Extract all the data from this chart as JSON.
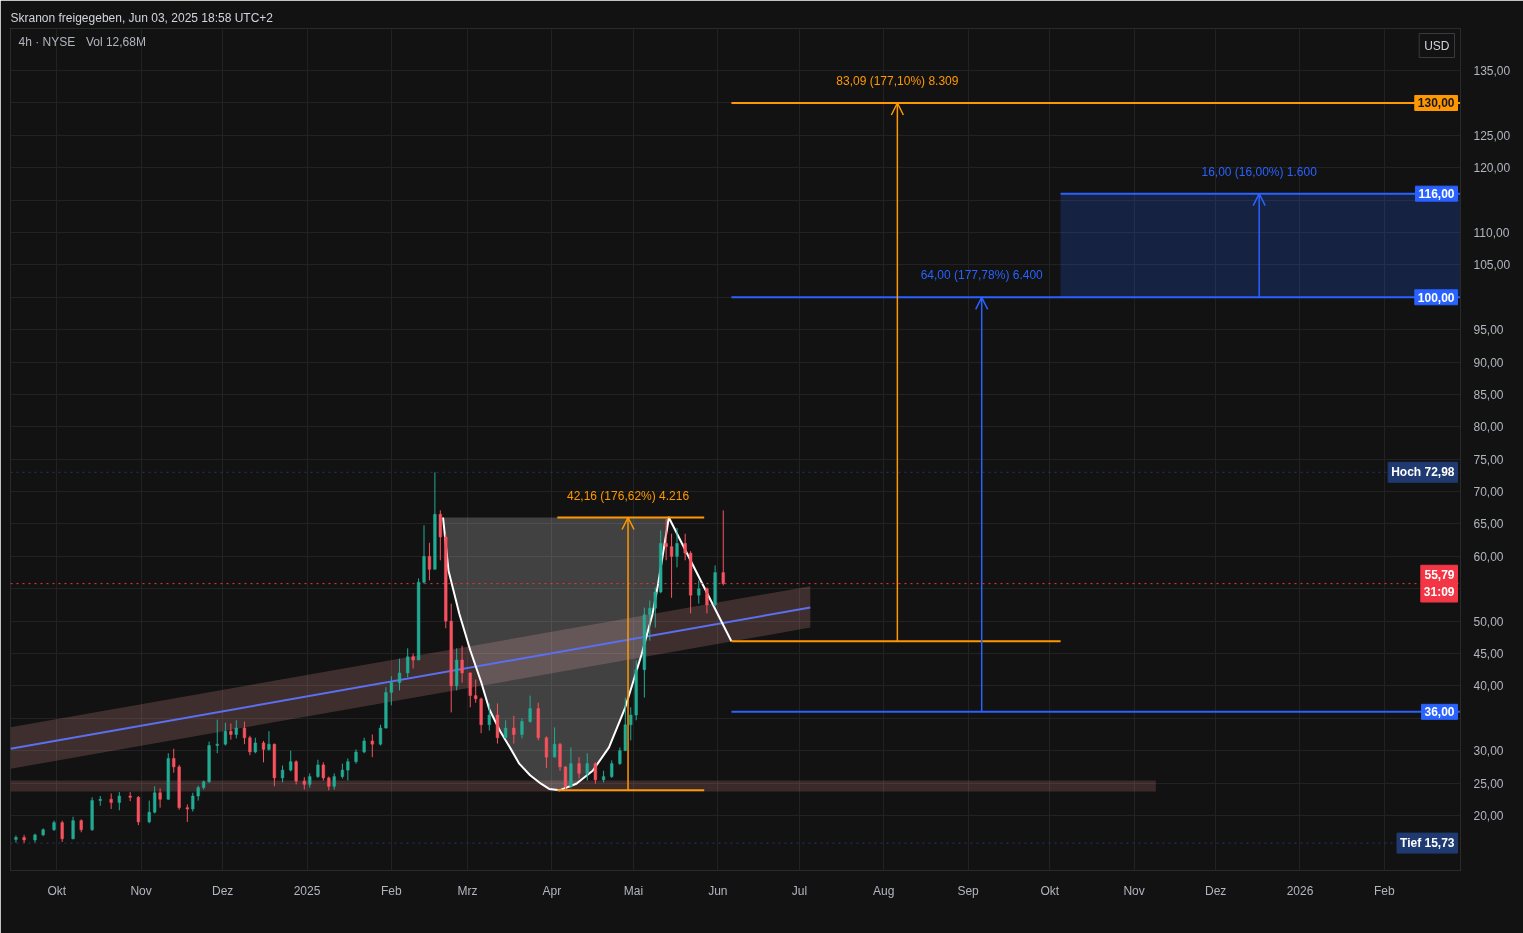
{
  "chart_data": {
    "type": "candlestick",
    "title": "4h · NYSE",
    "subtitle": "Vol 12,68M",
    "ylabel": "USD",
    "annotations": [
      "Skranon freigegeben, Jun 03, 2025 18:58 UTC+2",
      {
        "text": "42,16 (176,62%) 4.216",
        "x": "2025-04-29",
        "y": 66.0
      },
      {
        "text": "83,09 (177,10%) 8.309",
        "x": "2025-08-06",
        "y": 130
      },
      {
        "text": "64,00 (177,78%) 6.400",
        "x": "2025-09-06",
        "y": 100
      },
      {
        "text": "16,00 (16,00%) 1.600",
        "x": "2025-12-17",
        "y": 116
      }
    ],
    "x": [
      "2024-09-16",
      "2024-09-19",
      "2024-09-23",
      "2024-09-26",
      "2024-09-30",
      "2024-10-03",
      "2024-10-07",
      "2024-10-10",
      "2024-10-14",
      "2024-10-17",
      "2024-10-21",
      "2024-10-24",
      "2024-10-28",
      "2024-10-31",
      "2024-11-04",
      "2024-11-06",
      "2024-11-08",
      "2024-11-11",
      "2024-11-13",
      "2024-11-15",
      "2024-11-18",
      "2024-11-20",
      "2024-11-22",
      "2024-11-24",
      "2024-11-26",
      "2024-11-29",
      "2024-12-02",
      "2024-12-04",
      "2024-12-06",
      "2024-12-09",
      "2024-12-11",
      "2024-12-13",
      "2024-12-16",
      "2024-12-18",
      "2024-12-20",
      "2024-12-23",
      "2024-12-26",
      "2024-12-28",
      "2024-12-31",
      "2025-01-02",
      "2025-01-05",
      "2025-01-07",
      "2025-01-09",
      "2025-01-11",
      "2025-01-14",
      "2025-01-16",
      "2025-01-19",
      "2025-01-22",
      "2025-01-25",
      "2025-01-28",
      "2025-01-30",
      "2025-02-01",
      "2025-02-04",
      "2025-02-07",
      "2025-02-09",
      "2025-02-11",
      "2025-02-13",
      "2025-02-15",
      "2025-02-17",
      "2025-02-19",
      "2025-02-21",
      "2025-02-23",
      "2025-02-25",
      "2025-02-27",
      "2025-03-02",
      "2025-03-04",
      "2025-03-06",
      "2025-03-09",
      "2025-03-12",
      "2025-03-15",
      "2025-03-18",
      "2025-03-21",
      "2025-03-24",
      "2025-03-27",
      "2025-03-30",
      "2025-04-02",
      "2025-04-04",
      "2025-04-06",
      "2025-04-08",
      "2025-04-11",
      "2025-04-14",
      "2025-04-17",
      "2025-04-20",
      "2025-04-23",
      "2025-04-26",
      "2025-04-28",
      "2025-04-30",
      "2025-05-02",
      "2025-05-05",
      "2025-05-07",
      "2025-05-09",
      "2025-05-11",
      "2025-05-13",
      "2025-05-15",
      "2025-05-17",
      "2025-05-20",
      "2025-05-22",
      "2025-05-25",
      "2025-05-28",
      "2025-05-31",
      "2025-06-03"
    ],
    "ohlc": [
      [
        16.3,
        16.9,
        15.8,
        16.6
      ],
      [
        16.6,
        17.0,
        15.73,
        16.2
      ],
      [
        16.2,
        17.2,
        15.8,
        17.0
      ],
      [
        17.0,
        18.0,
        16.8,
        17.8
      ],
      [
        17.8,
        19.2,
        17.6,
        18.9
      ],
      [
        18.9,
        19.2,
        15.9,
        16.4
      ],
      [
        16.4,
        19.8,
        16.3,
        19.2
      ],
      [
        19.2,
        19.4,
        17.4,
        17.8
      ],
      [
        17.8,
        22.8,
        17.6,
        22.3
      ],
      [
        22.3,
        23.0,
        21.5,
        22.5
      ],
      [
        22.5,
        23.4,
        21.0,
        22.0
      ],
      [
        22.0,
        23.6,
        20.8,
        23.0
      ],
      [
        23.0,
        23.6,
        22.2,
        22.8
      ],
      [
        22.8,
        23.0,
        18.5,
        19.0
      ],
      [
        19.0,
        22.3,
        18.8,
        20.5
      ],
      [
        20.5,
        24.5,
        20.3,
        23.5
      ],
      [
        23.5,
        24.2,
        21.2,
        22.5
      ],
      [
        22.5,
        29.6,
        22.4,
        28.8
      ],
      [
        28.8,
        30.3,
        26.6,
        27.5
      ],
      [
        27.5,
        27.8,
        20.9,
        21.2
      ],
      [
        21.2,
        21.7,
        19.0,
        21.0
      ],
      [
        21.0,
        23.5,
        20.6,
        23.0
      ],
      [
        23.0,
        24.6,
        22.3,
        24.3
      ],
      [
        24.3,
        25.4,
        24.0,
        25.2
      ],
      [
        25.2,
        31.4,
        25.0,
        30.8
      ],
      [
        30.8,
        34.8,
        29.6,
        31.0
      ],
      [
        31.0,
        34.3,
        30.8,
        33.0
      ],
      [
        33.0,
        34.2,
        31.7,
        32.5
      ],
      [
        32.5,
        34.7,
        31.9,
        33.5
      ],
      [
        33.5,
        34.5,
        31.0,
        32.0
      ],
      [
        32.0,
        32.3,
        29.3,
        29.8
      ],
      [
        29.8,
        32.0,
        29.6,
        31.2
      ],
      [
        31.2,
        31.5,
        28.2,
        30.2
      ],
      [
        30.2,
        33.0,
        30.0,
        31.0
      ],
      [
        31.0,
        31.1,
        24.5,
        25.8
      ],
      [
        25.8,
        27.7,
        25.1,
        27.0
      ],
      [
        27.0,
        30.0,
        26.8,
        28.3
      ],
      [
        28.3,
        28.5,
        24.8,
        25.3
      ],
      [
        25.3,
        25.9,
        24.0,
        24.8
      ],
      [
        24.8,
        26.5,
        24.3,
        26.0
      ],
      [
        26.0,
        28.6,
        25.8,
        27.8
      ],
      [
        27.8,
        28.2,
        25.4,
        25.8
      ],
      [
        25.8,
        26.0,
        23.9,
        24.5
      ],
      [
        24.5,
        26.5,
        24.0,
        26.0
      ],
      [
        26.0,
        28.0,
        25.7,
        27.0
      ],
      [
        27.0,
        28.8,
        25.4,
        28.3
      ],
      [
        28.3,
        30.2,
        28.0,
        29.8
      ],
      [
        29.8,
        32.0,
        29.6,
        31.5
      ],
      [
        31.5,
        32.5,
        29.0,
        31.0
      ],
      [
        31.0,
        34.0,
        30.8,
        33.5
      ],
      [
        33.5,
        39.8,
        33.4,
        39.0
      ],
      [
        39.0,
        41.5,
        37.0,
        40.5
      ],
      [
        40.5,
        44.2,
        39.3,
        42.0
      ],
      [
        42.0,
        45.8,
        41.3,
        44.5
      ],
      [
        44.5,
        45.0,
        42.7,
        44.0
      ],
      [
        44.0,
        56.6,
        44.0,
        56.0
      ],
      [
        56.0,
        64.8,
        55.8,
        60.0
      ],
      [
        60.0,
        62.1,
        56.3,
        58.0
      ],
      [
        58.0,
        72.98,
        58.0,
        66.5
      ],
      [
        66.5,
        67.1,
        59.4,
        63.0
      ],
      [
        63.0,
        63.5,
        48.9,
        50.0
      ],
      [
        50.0,
        52.7,
        35.9,
        40.0
      ],
      [
        40.0,
        45.8,
        39.3,
        44.0
      ],
      [
        44.0,
        46.2,
        40.5,
        42.0
      ],
      [
        42.0,
        42.1,
        36.7,
        38.5
      ],
      [
        38.5,
        41.0,
        37.4,
        38.0
      ],
      [
        38.0,
        38.2,
        32.7,
        34.0
      ],
      [
        34.0,
        37.3,
        33.1,
        35.5
      ],
      [
        35.5,
        37.3,
        31.1,
        32.0
      ],
      [
        32.0,
        34.7,
        31.9,
        33.5
      ],
      [
        33.5,
        35.4,
        31.1,
        32.5
      ],
      [
        32.5,
        35.0,
        31.9,
        34.5
      ],
      [
        34.5,
        38.5,
        34.3,
        36.5
      ],
      [
        36.5,
        37.4,
        31.6,
        32.0
      ],
      [
        32.0,
        32.2,
        27.3,
        29.0
      ],
      [
        29.0,
        33.6,
        29.0,
        31.0
      ],
      [
        31.0,
        31.2,
        26.9,
        27.5
      ],
      [
        27.5,
        27.6,
        23.9,
        24.5
      ],
      [
        24.5,
        30.5,
        24.2,
        28.0
      ],
      [
        28.0,
        29.0,
        25.7,
        26.5
      ],
      [
        26.5,
        29.6,
        25.4,
        28.0
      ],
      [
        28.0,
        28.2,
        24.9,
        25.5
      ],
      [
        25.5,
        26.9,
        25.1,
        26.0
      ],
      [
        26.0,
        28.5,
        25.8,
        28.0
      ],
      [
        28.0,
        30.5,
        27.8,
        30.0
      ],
      [
        30.0,
        38.2,
        30.0,
        34.0
      ],
      [
        34.0,
        36.7,
        31.6,
        35.5
      ],
      [
        35.5,
        43.9,
        34.7,
        42.5
      ],
      [
        42.5,
        52.1,
        38.2,
        51.0
      ],
      [
        51.0,
        53.2,
        47.0,
        52.0
      ],
      [
        52.0,
        55.2,
        49.0,
        54.5
      ],
      [
        54.5,
        64.0,
        54.3,
        62.0
      ],
      [
        62.0,
        65.8,
        59.4,
        61.5
      ],
      [
        61.5,
        63.5,
        53.6,
        60.0
      ],
      [
        60.0,
        64.4,
        58.3,
        62.0
      ],
      [
        62.0,
        63.5,
        59.4,
        60.5
      ],
      [
        60.5,
        60.8,
        51.2,
        54.0
      ],
      [
        54.0,
        56.3,
        52.7,
        55.0
      ],
      [
        55.0,
        55.2,
        51.2,
        52.5
      ],
      [
        52.5,
        58.6,
        52.3,
        57.5
      ],
      [
        57.5,
        67.1,
        55.5,
        55.79
      ]
    ],
    "colors": [
      "#22ab94",
      "#f7525f",
      "#22ab94",
      "#22ab94",
      "#22ab94",
      "#f7525f",
      "#22ab94",
      "#f7525f",
      "#22ab94",
      "#22ab94",
      "#f7525f",
      "#22ab94",
      "#f7525f",
      "#f7525f",
      "#22ab94",
      "#22ab94",
      "#f7525f",
      "#22ab94",
      "#f7525f",
      "#f7525f",
      "#f7525f",
      "#22ab94",
      "#22ab94",
      "#22ab94",
      "#22ab94",
      "#22ab94",
      "#22ab94",
      "#f7525f",
      "#22ab94",
      "#f7525f",
      "#f7525f",
      "#22ab94",
      "#f7525f",
      "#22ab94",
      "#f7525f",
      "#22ab94",
      "#22ab94",
      "#f7525f",
      "#f7525f",
      "#22ab94",
      "#22ab94",
      "#f7525f",
      "#f7525f",
      "#22ab94",
      "#22ab94",
      "#22ab94",
      "#22ab94",
      "#22ab94",
      "#f7525f",
      "#22ab94",
      "#22ab94",
      "#22ab94",
      "#22ab94",
      "#22ab94",
      "#f7525f",
      "#22ab94",
      "#22ab94",
      "#f7525f",
      "#22ab94",
      "#f7525f",
      "#f7525f",
      "#f7525f",
      "#22ab94",
      "#f7525f",
      "#f7525f",
      "#f7525f",
      "#f7525f",
      "#22ab94",
      "#f7525f",
      "#22ab94",
      "#f7525f",
      "#22ab94",
      "#22ab94",
      "#f7525f",
      "#f7525f",
      "#22ab94",
      "#f7525f",
      "#f7525f",
      "#22ab94",
      "#f7525f",
      "#22ab94",
      "#f7525f",
      "#22ab94",
      "#22ab94",
      "#22ab94",
      "#22ab94",
      "#22ab94",
      "#22ab94",
      "#22ab94",
      "#22ab94",
      "#22ab94",
      "#22ab94",
      "#f7525f",
      "#f7525f",
      "#22ab94",
      "#f7525f",
      "#f7525f",
      "#22ab94",
      "#f7525f",
      "#22ab94",
      "#f7525f"
    ],
    "series": [
      {
        "type": "line",
        "color": "#df8a8a",
        "x": [
          "2024-09-14",
          "2025-11-09"
        ],
        "values": [
          null,
          null
        ],
        "lower": [
          23.7,
          23.7
        ],
        "upper": [
          25.4,
          25.4
        ]
      },
      {
        "type": "line",
        "color": "#f39e9e",
        "x": [
          "2024-09-14",
          "2025-07-05"
        ],
        "values": [
          null,
          null
        ],
        "lower": [
          27.2,
          49.0
        ],
        "upper": [
          33.6,
          55.4
        ]
      },
      {
        "type": "line",
        "color": "#5b6ff0",
        "x": [
          "2024-09-14",
          "2025-07-05"
        ],
        "values": [
          30.3,
          52.1
        ]
      },
      {
        "type": "line",
        "color": "#ffffff",
        "x": [
          "2025-02-20",
          "2025-02-22",
          "2025-02-26",
          "2025-03-02",
          "2025-03-06",
          "2025-03-09",
          "2025-03-13",
          "2025-03-17",
          "2025-03-20",
          "2025-03-24",
          "2025-03-28",
          "2025-03-31",
          "2025-04-04",
          "2025-04-10",
          "2025-04-16",
          "2025-04-22",
          "2025-04-28",
          "2025-05-04",
          "2025-05-08",
          "2025-05-10",
          "2025-05-14",
          "2025-06-06"
        ],
        "values": [
          66.0,
          57.8,
          51.1,
          45.5,
          40.6,
          36.4,
          33.0,
          30.2,
          28.0,
          26.2,
          24.9,
          24.1,
          23.9,
          24.9,
          26.9,
          30.5,
          36.7,
          44.9,
          51.1,
          55.6,
          66.0,
          46.9
        ],
        "lower": [
          66.0,
          57.8,
          51.1,
          45.5,
          40.6,
          36.4,
          33.0,
          30.2,
          28.0,
          26.2,
          24.9,
          24.1,
          23.9,
          24.9,
          26.9,
          30.5,
          36.7,
          44.9,
          51.1,
          55.6,
          66.0,
          null
        ],
        "upper": [
          66.0,
          66.0,
          66.0,
          66.0,
          66.0,
          66.0,
          66.0,
          66.0,
          66.0,
          66.0,
          66.0,
          66.0,
          66.0,
          66.0,
          66.0,
          66.0,
          66.0,
          66.0,
          66.0,
          66.0,
          66.0,
          null
        ]
      },
      {
        "type": "line",
        "color": "#ff9800",
        "x": [
          "2025-04-03",
          "2025-05-27"
        ],
        "values": [
          66.0,
          66.0
        ]
      },
      {
        "type": "line",
        "color": "#ff9800",
        "x": [
          "2025-04-03",
          "2025-05-27"
        ],
        "values": [
          23.9,
          23.9
        ]
      },
      {
        "type": "line",
        "color": "#ff9800",
        "x": [
          "2025-06-06",
          "2026-03-01"
        ],
        "values": [
          130,
          130
        ],
        "value_labels": [
          null,
          "130,00"
        ]
      },
      {
        "type": "line",
        "color": "#ff9800",
        "x": [
          "2025-06-06",
          "2025-10-05"
        ],
        "values": [
          46.9,
          46.9
        ]
      },
      {
        "type": "line",
        "color": "#2962ff",
        "x": [
          "2025-06-06",
          "2026-03-01"
        ],
        "values": [
          100,
          100
        ],
        "value_labels": [
          null,
          "100,00"
        ]
      },
      {
        "type": "line",
        "color": "#2962ff",
        "x": [
          "2025-06-06",
          "2026-03-01"
        ],
        "values": [
          36,
          36
        ],
        "value_labels": [
          null,
          "36,00"
        ]
      },
      {
        "type": "line",
        "color": "#2962ff",
        "x": [
          "2025-10-05",
          "2026-03-01"
        ],
        "values": [
          116,
          116
        ],
        "lower": [
          100,
          100
        ],
        "upper": [
          116,
          116
        ],
        "value_labels": [
          null,
          "116,00"
        ]
      }
    ],
    "ref_lines": [
      {
        "axis": "y",
        "value": 72.98,
        "label": "Hoch 72,98",
        "color": "#1f3a70",
        "line_style": "dotted"
      },
      {
        "axis": "y",
        "value": 55.79,
        "label": "55,79\n31:09",
        "color": "#f23645",
        "line_style": "dotted"
      },
      {
        "axis": "y",
        "value": 15.73,
        "label": "Tief 15,73",
        "color": "#1f3a70",
        "line_style": "dotted"
      }
    ],
    "xlim": [
      "2024-09-14",
      "2026-03-01"
    ],
    "ylim": [
      11.5,
      141.5
    ],
    "xticks": [
      {
        "value": "2024-10-01",
        "label": "Okt"
      },
      {
        "value": "2024-11-01",
        "label": "Nov"
      },
      {
        "value": "2024-12-01",
        "label": "Dez"
      },
      {
        "value": "2025-01-01",
        "label": "2025"
      },
      {
        "value": "2025-02-01",
        "label": "Feb"
      },
      {
        "value": "2025-03-01",
        "label": "Mrz"
      },
      {
        "value": "2025-04-01",
        "label": "Apr"
      },
      {
        "value": "2025-05-01",
        "label": "Mai"
      },
      {
        "value": "2025-06-01",
        "label": "Jun"
      },
      {
        "value": "2025-07-01",
        "label": "Jul"
      },
      {
        "value": "2025-08-01",
        "label": "Aug"
      },
      {
        "value": "2025-09-01",
        "label": "Sep"
      },
      {
        "value": "2025-10-01",
        "label": "Okt"
      },
      {
        "value": "2025-11-01",
        "label": "Nov"
      },
      {
        "value": "2025-12-01",
        "label": "Dez"
      },
      {
        "value": "2026-01-01",
        "label": "2026"
      },
      {
        "value": "2026-02-01",
        "label": "Feb"
      }
    ],
    "yticks": [
      {
        "value": 20,
        "label": "20,00"
      },
      {
        "value": 25,
        "label": "25,00"
      },
      {
        "value": 30,
        "label": "30,00"
      },
      {
        "value": 35,
        "label": null
      },
      {
        "value": 40,
        "label": "40,00"
      },
      {
        "value": 45,
        "label": "45,00"
      },
      {
        "value": 50,
        "label": "50,00"
      },
      {
        "value": 55,
        "label": null
      },
      {
        "value": 60,
        "label": "60,00"
      },
      {
        "value": 65,
        "label": "65,00"
      },
      {
        "value": 70,
        "label": "70,00"
      },
      {
        "value": 75,
        "label": "75,00"
      },
      {
        "value": 80,
        "label": "80,00"
      },
      {
        "value": 85,
        "label": "85,00"
      },
      {
        "value": 90,
        "label": "90,00"
      },
      {
        "value": 95,
        "label": "95,00"
      },
      {
        "value": 100,
        "label": null
      },
      {
        "value": 105,
        "label": "105,00"
      },
      {
        "value": 110,
        "label": "110,00"
      },
      {
        "value": 115,
        "label": null
      },
      {
        "value": 120,
        "label": "120,00"
      },
      {
        "value": 125,
        "label": "125,00"
      },
      {
        "value": 130,
        "label": null
      },
      {
        "value": 135,
        "label": "135,00"
      }
    ],
    "grid": true
  }
}
